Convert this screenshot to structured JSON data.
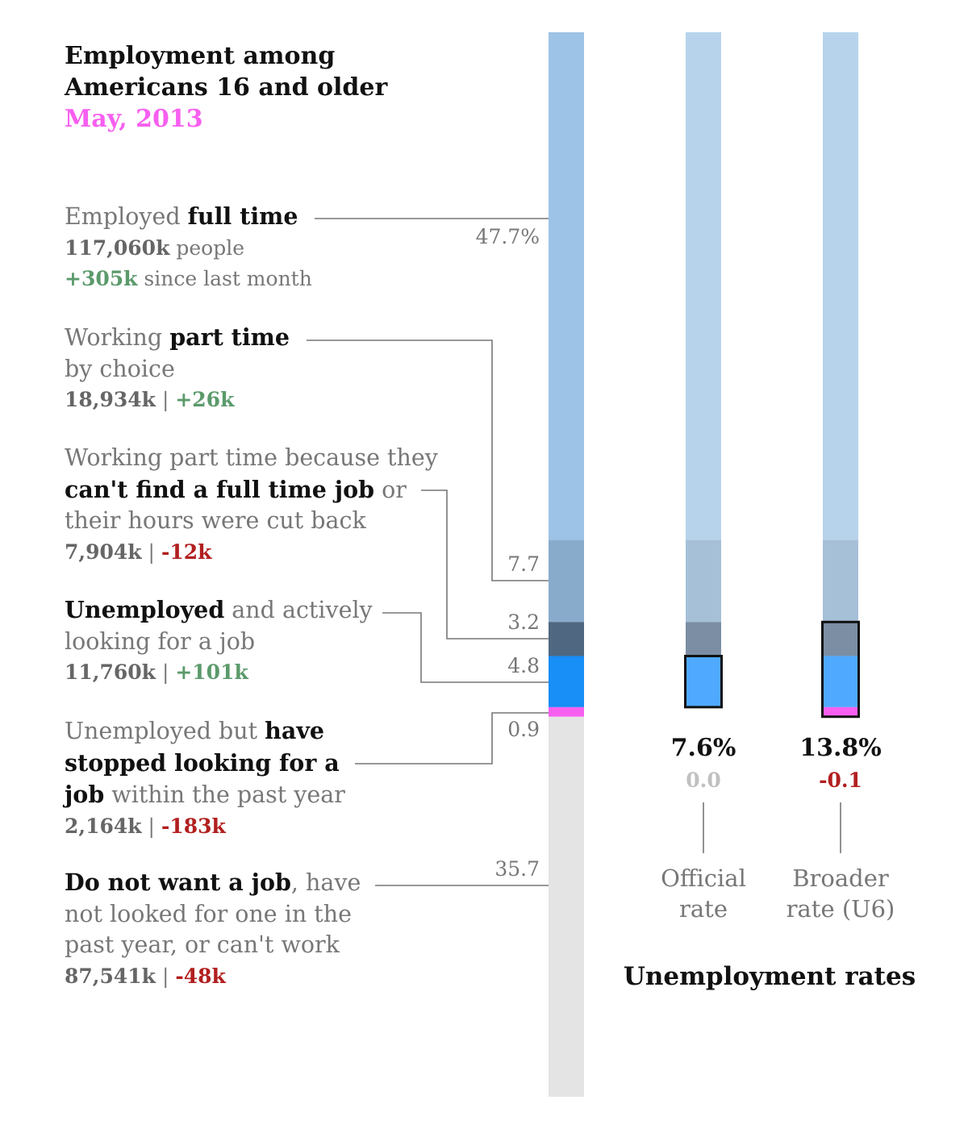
{
  "header": {
    "title_line1": "Employment among",
    "title_line2": "Americans 16 and older",
    "subtitle": "May, 2013"
  },
  "categories": [
    {
      "id": "full_time",
      "text_pre": "Employed ",
      "text_bold": "full time",
      "value": "117,060k",
      "value_suffix": " people",
      "change": "+305k",
      "change_suffix": " since last month",
      "pct_label": "47.7%"
    },
    {
      "id": "part_time_choice",
      "text_pre": "Working ",
      "text_bold": "part time",
      "line2": "by choice",
      "value": "18,934k",
      "sep": " | ",
      "change": "+26k",
      "pct_label": "7.7"
    },
    {
      "id": "part_time_economic",
      "line1": "Working part time because they",
      "text_bold": "can't find a full time job",
      "text_post": " or",
      "line3": "their hours were cut back",
      "value": "7,904k",
      "sep": " | ",
      "change": "-12k",
      "pct_label": "3.2"
    },
    {
      "id": "unemployed_looking",
      "text_bold": "Unemployed",
      "text_post": " and actively",
      "line2": "looking for a job",
      "value": "11,760k",
      "sep": " | ",
      "change": "+101k",
      "pct_label": "4.8"
    },
    {
      "id": "stopped_looking",
      "text_pre": "Unemployed but ",
      "text_bold1": "have",
      "text_bold2": "stopped looking for a",
      "text_bold3": "job",
      "text_post": " within the past year",
      "value": "2,164k",
      "sep": " | ",
      "change": "-183k",
      "pct_label": "0.9"
    },
    {
      "id": "not_want",
      "text_bold": "Do not want a job",
      "text_post": ", have",
      "line2": "not looked for one in the",
      "line3": "past year, or can't work",
      "value": "87,541k",
      "sep": " | ",
      "change": "-48k",
      "pct_label": "35.7"
    }
  ],
  "rates": {
    "title": "Unemployment rates",
    "official": {
      "value": "7.6%",
      "change": "0.0",
      "name_line1": "Official",
      "name_line2": "rate"
    },
    "broader": {
      "value": "13.8%",
      "change": "-0.1",
      "name_line1": "Broader",
      "name_line2": "rate (U6)"
    }
  },
  "colors": {
    "full_time": "#9dc3e6",
    "part_time_choice": "#88abcc",
    "part_time_economic": "#4f6780",
    "unemployed_looking": "#188ef7",
    "stopped_looking": "#f75ff0",
    "not_want": "#e4e4e4",
    "positive": "#5b9a6b",
    "negative": "#b21f1f",
    "neutral": "#c0c0c0",
    "subtitle": "#f75ff0"
  },
  "chart_data": {
    "type": "bar",
    "stacked": true,
    "orientation": "vertical",
    "categories": [
      "Employed full time",
      "Working part time by choice",
      "Working part time because they can't find a full time job",
      "Unemployed and actively looking for a job",
      "Unemployed but have stopped looking for a job",
      "Do not want a job"
    ],
    "values": [
      47.7,
      7.7,
      3.2,
      4.8,
      0.9,
      35.7
    ],
    "unit": "%",
    "rates": [
      {
        "name": "Official rate",
        "value": 7.6,
        "change": 0.0
      },
      {
        "name": "Broader rate (U6)",
        "value": 13.8,
        "change": -0.1
      }
    ]
  }
}
